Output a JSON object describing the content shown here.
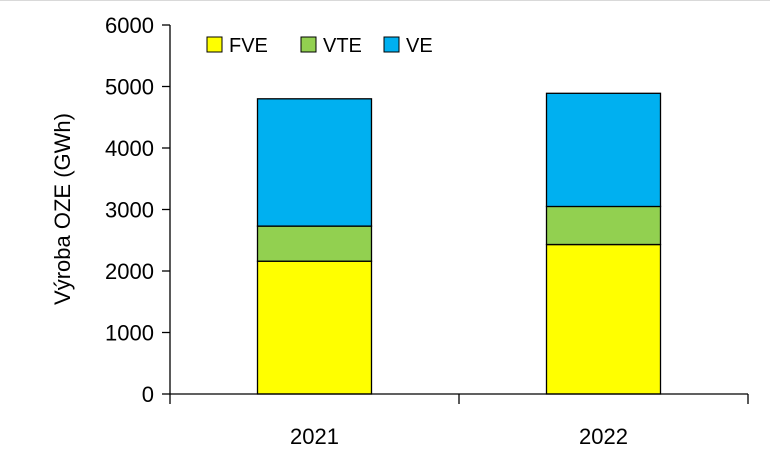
{
  "chart_data": {
    "type": "bar",
    "stacked": true,
    "categories": [
      "2021",
      "2022"
    ],
    "series": [
      {
        "name": "FVE",
        "values": [
          2160,
          2430
        ],
        "color": "#FFFF00"
      },
      {
        "name": "VTE",
        "values": [
          570,
          620
        ],
        "color": "#92D050"
      },
      {
        "name": "VE",
        "values": [
          2070,
          1840
        ],
        "color": "#00B0F0"
      }
    ],
    "title": "",
    "xlabel": "",
    "ylabel": "Výroba OZE (GWh)",
    "ylim": [
      0,
      6000
    ],
    "yticks": [
      "0",
      "1000",
      "2000",
      "3000",
      "4000",
      "5000",
      "6000"
    ],
    "grid": false,
    "legend_position": "top-left"
  }
}
